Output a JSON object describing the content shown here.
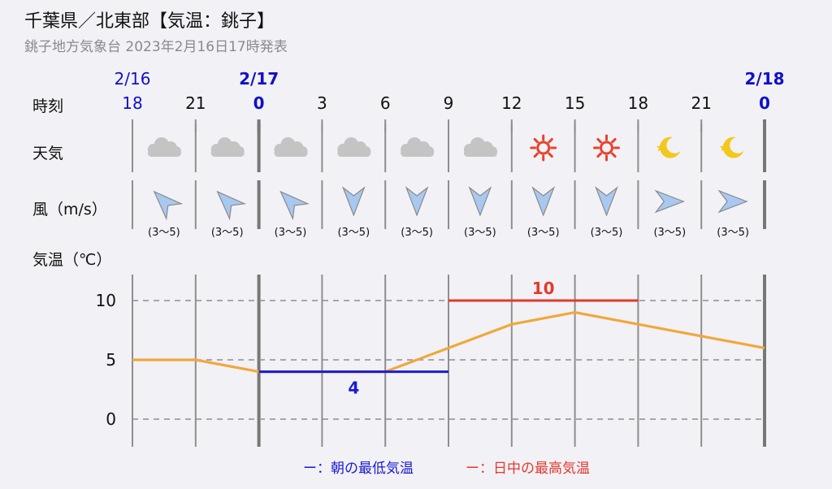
{
  "header": {
    "title": "千葉県／北東部【気温：銚子】",
    "subtitle": "銚子地方気象台 2023年2月16日17時発表"
  },
  "row_labels": {
    "time": "時刻",
    "weather": "天気",
    "wind": "風（m/s）",
    "temp": "気温（℃）"
  },
  "dates": [
    {
      "label": "2/16",
      "index": 0
    },
    {
      "label": "2/17",
      "index": 2
    },
    {
      "label": "2/18",
      "index": 10
    }
  ],
  "colors": {
    "date": "#1010c8",
    "temp_line": "#f0a83c",
    "low": "#1a1ad4",
    "high": "#e23a2c",
    "cloud": "#c4c4c4",
    "sun": "#e8432c",
    "moon": "#f2c81c",
    "wind": "#a8c8f0"
  },
  "hours": [
    "18",
    "21",
    "0",
    "3",
    "6",
    "9",
    "12",
    "15",
    "18",
    "21",
    "0"
  ],
  "weather": [
    "cloud-icon",
    "cloud-icon",
    "cloud-icon",
    "cloud-icon",
    "cloud-icon",
    "cloud-icon",
    "sun-icon",
    "sun-icon",
    "moon-icon",
    "moon-icon"
  ],
  "wind_dirs": [
    "NE",
    "NE",
    "NE",
    "N",
    "N",
    "N",
    "N",
    "N",
    "E",
    "E"
  ],
  "wind_speeds": [
    "(3〜5)",
    "(3〜5)",
    "(3〜5)",
    "(3〜5)",
    "(3〜5)",
    "(3〜5)",
    "(3〜5)",
    "(3〜5)",
    "(3〜5)",
    "(3〜5)"
  ],
  "legend": {
    "low": "ー：朝の最低気温",
    "high": "ー：日中の最高気温"
  },
  "chart_data": {
    "type": "line",
    "x": [
      "2/16 18",
      "2/16 21",
      "2/17 0",
      "2/17 3",
      "2/17 6",
      "2/17 9",
      "2/17 12",
      "2/17 15",
      "2/17 18",
      "2/17 21",
      "2/18 0"
    ],
    "series": [
      {
        "values": [
          5,
          5,
          4,
          4,
          4,
          6,
          8,
          9,
          8,
          7,
          6
        ]
      }
    ],
    "min_temp": {
      "value": 4,
      "label": "4",
      "from_index": 2,
      "to_index": 5
    },
    "max_temp": {
      "value": 10,
      "label": "10",
      "from_index": 5,
      "to_index": 8
    },
    "y_ticks": [
      "0",
      "5",
      "10"
    ],
    "ylim": [
      -2.4,
      12.2
    ],
    "grid": true
  }
}
